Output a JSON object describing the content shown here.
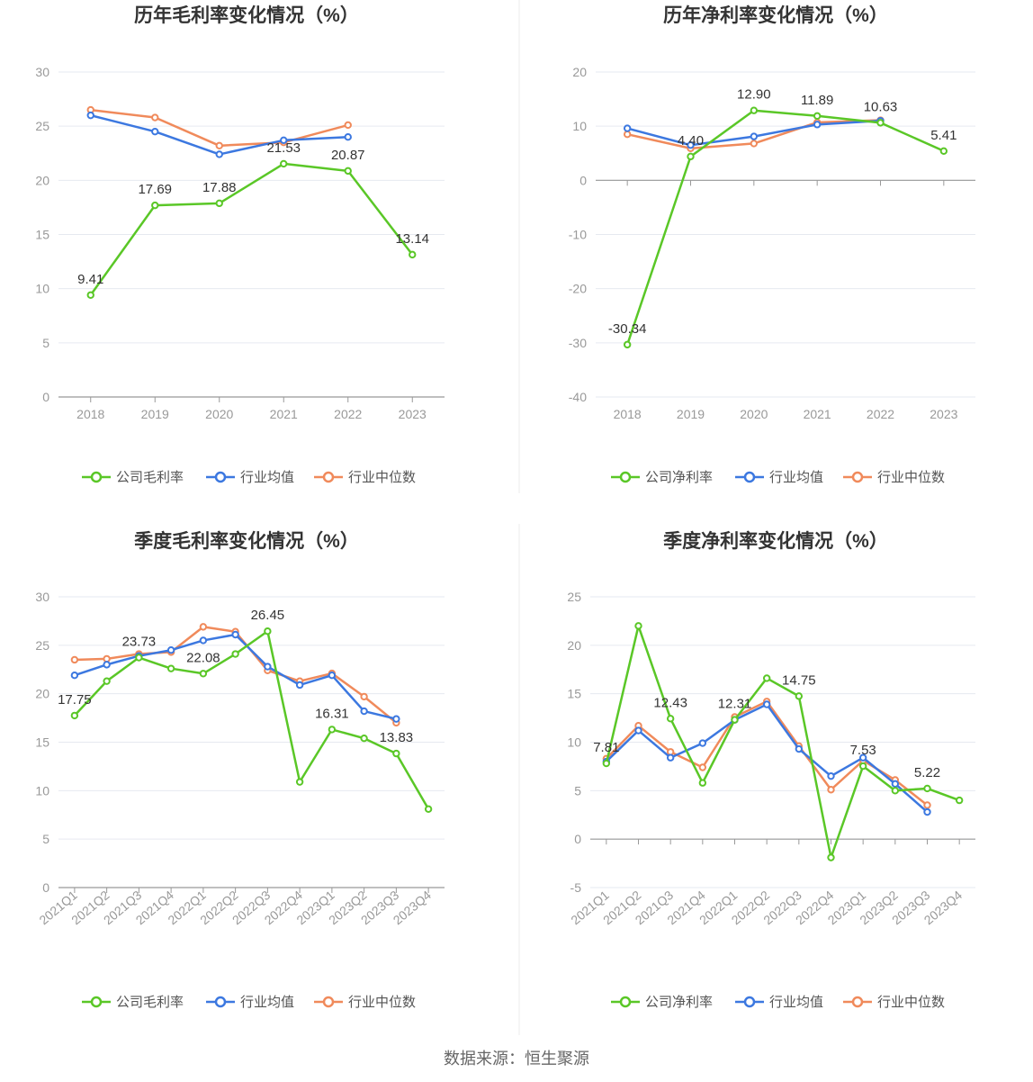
{
  "colors": {
    "company": "#5ac727",
    "average": "#3c78e0",
    "median": "#f08a5b",
    "grid": "#e6e9f0",
    "axis": "#999999"
  },
  "legend": {
    "company_gross": "公司毛利率",
    "company_net": "公司净利率",
    "average": "行业均值",
    "median": "行业中位数"
  },
  "source": "数据来源：恒生聚源",
  "chart_data": [
    {
      "id": "annual-gross",
      "type": "line",
      "title": "历年毛利率变化情况（%）",
      "categories": [
        "2018",
        "2019",
        "2020",
        "2021",
        "2022",
        "2023"
      ],
      "ylim": [
        0,
        30
      ],
      "yticks": [
        0,
        5,
        10,
        15,
        20,
        25,
        30
      ],
      "series": [
        {
          "name": "公司毛利率",
          "key": "company",
          "values": [
            9.41,
            17.69,
            17.88,
            21.53,
            20.87,
            13.14
          ],
          "labels": [
            "9.41",
            "17.69",
            "17.88",
            "21.53",
            "20.87",
            "13.14"
          ]
        },
        {
          "name": "行业均值",
          "key": "average",
          "values": [
            26.0,
            24.5,
            22.4,
            23.7,
            24.0,
            null
          ]
        },
        {
          "name": "行业中位数",
          "key": "median",
          "values": [
            26.5,
            25.8,
            23.2,
            23.5,
            25.1,
            null
          ]
        }
      ]
    },
    {
      "id": "annual-net",
      "type": "line",
      "title": "历年净利率变化情况（%）",
      "categories": [
        "2018",
        "2019",
        "2020",
        "2021",
        "2022",
        "2023"
      ],
      "ylim": [
        -40,
        20
      ],
      "yticks": [
        -40,
        -30,
        -20,
        -10,
        0,
        10,
        20
      ],
      "series": [
        {
          "name": "公司净利率",
          "key": "company",
          "values": [
            -30.34,
            4.4,
            12.9,
            11.89,
            10.63,
            5.41
          ],
          "labels": [
            "-30.34",
            "4.40",
            "12.90",
            "11.89",
            "10.63",
            "5.41"
          ]
        },
        {
          "name": "行业均值",
          "key": "average",
          "values": [
            9.6,
            6.5,
            8.1,
            10.3,
            11.0,
            null
          ]
        },
        {
          "name": "行业中位数",
          "key": "median",
          "values": [
            8.5,
            5.9,
            6.8,
            10.7,
            11.1,
            null
          ]
        }
      ]
    },
    {
      "id": "quarter-gross",
      "type": "line",
      "title": "季度毛利率变化情况（%）",
      "categories": [
        "2021Q1",
        "2021Q2",
        "2021Q3",
        "2021Q4",
        "2022Q1",
        "2022Q2",
        "2022Q3",
        "2022Q4",
        "2023Q1",
        "2023Q2",
        "2023Q3",
        "2023Q4"
      ],
      "ylim": [
        0,
        30
      ],
      "yticks": [
        0,
        5,
        10,
        15,
        20,
        25,
        30
      ],
      "series": [
        {
          "name": "公司毛利率",
          "key": "company",
          "values": [
            17.75,
            21.3,
            23.73,
            22.6,
            22.08,
            24.1,
            26.45,
            10.9,
            16.31,
            15.4,
            13.83,
            8.1
          ],
          "labels": [
            "17.75",
            "",
            "23.73",
            "",
            "22.08",
            "",
            "26.45",
            "",
            "16.31",
            "",
            "13.83",
            ""
          ]
        },
        {
          "name": "行业均值",
          "key": "average",
          "values": [
            21.9,
            23.0,
            23.9,
            24.5,
            25.5,
            26.1,
            22.8,
            20.9,
            21.9,
            18.2,
            17.4,
            null
          ]
        },
        {
          "name": "行业中位数",
          "key": "median",
          "values": [
            23.5,
            23.6,
            24.1,
            24.3,
            26.9,
            26.4,
            22.4,
            21.3,
            22.1,
            19.7,
            17.0,
            null
          ]
        }
      ]
    },
    {
      "id": "quarter-net",
      "type": "line",
      "title": "季度净利率变化情况（%）",
      "categories": [
        "2021Q1",
        "2021Q2",
        "2021Q3",
        "2021Q4",
        "2022Q1",
        "2022Q2",
        "2022Q3",
        "2022Q4",
        "2023Q1",
        "2023Q2",
        "2023Q3",
        "2023Q4"
      ],
      "ylim": [
        -5,
        25
      ],
      "yticks": [
        -5,
        0,
        5,
        10,
        15,
        20,
        25
      ],
      "series": [
        {
          "name": "公司净利率",
          "key": "company",
          "values": [
            7.81,
            22.0,
            12.43,
            5.8,
            12.31,
            16.6,
            14.75,
            -1.9,
            7.53,
            5.0,
            5.22,
            4.0
          ],
          "labels": [
            "7.81",
            "",
            "12.43",
            "",
            "12.31",
            "",
            "14.75",
            "",
            "7.53",
            "",
            "5.22",
            ""
          ]
        },
        {
          "name": "行业均值",
          "key": "average",
          "values": [
            8.0,
            11.2,
            8.4,
            9.9,
            12.3,
            13.9,
            9.3,
            6.5,
            8.4,
            5.7,
            2.8,
            null
          ]
        },
        {
          "name": "行业中位数",
          "key": "median",
          "values": [
            8.3,
            11.7,
            9.0,
            7.4,
            12.6,
            14.2,
            9.6,
            5.1,
            8.1,
            6.1,
            3.5,
            null
          ]
        }
      ]
    }
  ]
}
